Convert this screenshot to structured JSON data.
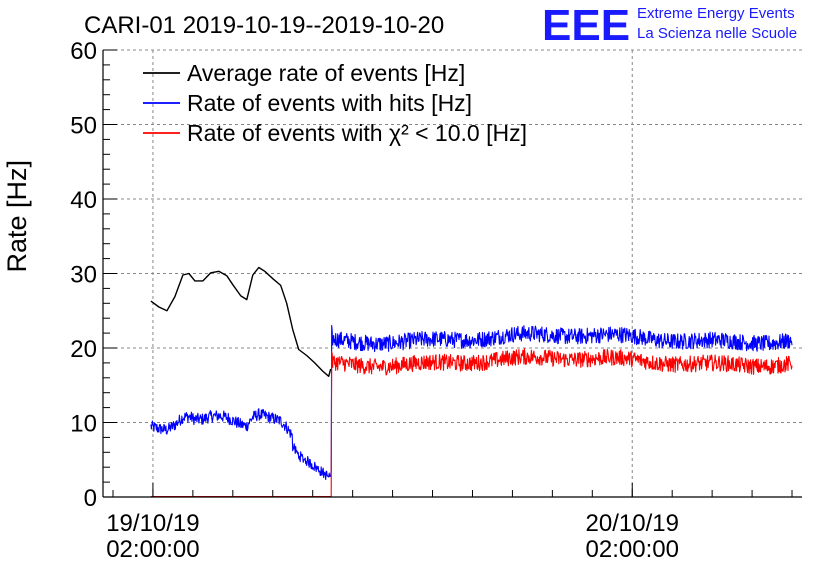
{
  "header": {
    "title": "CARI-01 2019-10-19--2019-10-20"
  },
  "logo": {
    "mark": "EEE",
    "line1": "Extreme Energy Events",
    "line2": "La Scienza nelle Scuole",
    "color": "#1a1aff"
  },
  "chart_data": {
    "type": "line",
    "ylabel": "Rate [Hz]",
    "xlabel": "",
    "ylim": [
      0,
      60
    ],
    "yticks": [
      0,
      10,
      20,
      30,
      40,
      50,
      60
    ],
    "grid": true,
    "legend_position": "top-left",
    "x_unit": "hours since 2019-10-19 00:00:00",
    "x_range": [
      -0.5,
      34.5
    ],
    "x_tick_labels": [
      {
        "x": 2,
        "date": "19/10/19",
        "time": "02:00:00"
      },
      {
        "x": 26,
        "date": "20/10/19",
        "time": "02:00:00"
      }
    ],
    "gap_start": 7.8,
    "series": [
      {
        "name": "Average rate of events [Hz]",
        "color": "#000000",
        "points": [
          [
            1.9,
            26.3
          ],
          [
            2.3,
            25.5
          ],
          [
            2.7,
            25.0
          ],
          [
            3.1,
            26.9
          ],
          [
            3.5,
            29.8
          ],
          [
            3.8,
            30.0
          ],
          [
            4.1,
            29.0
          ],
          [
            4.5,
            29.0
          ],
          [
            4.9,
            30.1
          ],
          [
            5.3,
            30.3
          ],
          [
            5.7,
            29.7
          ],
          [
            6.0,
            28.5
          ],
          [
            6.4,
            27.0
          ],
          [
            6.7,
            26.5
          ],
          [
            7.0,
            29.8
          ],
          [
            7.3,
            30.8
          ],
          [
            7.6,
            30.3
          ],
          [
            8.0,
            29.3
          ],
          [
            8.4,
            28.4
          ],
          [
            8.7,
            26.0
          ],
          [
            9.0,
            22.5
          ],
          [
            9.3,
            19.8
          ],
          [
            9.7,
            19.0
          ],
          [
            10.1,
            18.0
          ],
          [
            10.5,
            16.9
          ],
          [
            10.8,
            16.2
          ],
          [
            10.9,
            17.2
          ]
        ]
      },
      {
        "name": "Rate of events with hits [Hz]",
        "color": "#0000ff",
        "start": 1.9,
        "gap_value": 5.0,
        "jump_value": 22.0,
        "end": 34.0,
        "stable_mean": 21.3
      },
      {
        "name": "Rate of events with χ² < 10.0 [Hz]",
        "color": "#ff0000",
        "start": 1.9,
        "gap_value": 0.05,
        "jump_value": 19.5,
        "end": 34.0,
        "stable_mean": 18.2
      }
    ]
  }
}
